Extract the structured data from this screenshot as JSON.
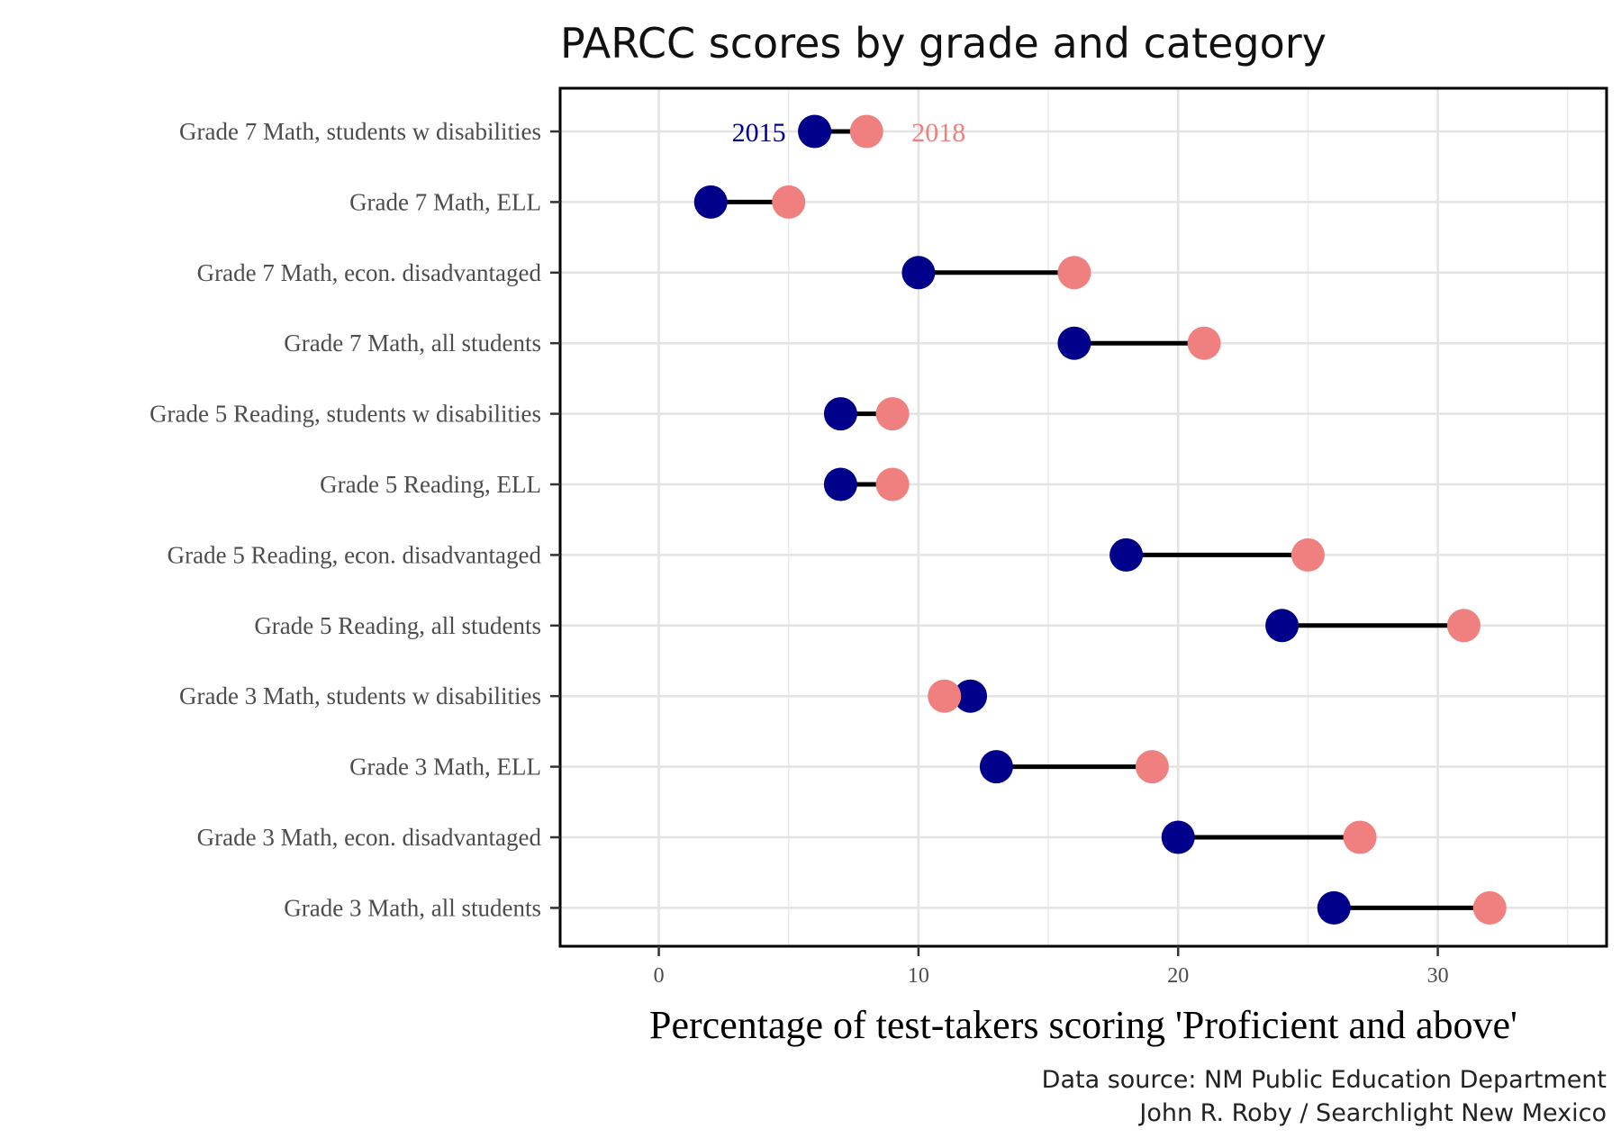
{
  "chart_data": {
    "type": "dumbbell",
    "title": "PARCC scores by grade and category",
    "xlabel": "Percentage of test-takers scoring 'Proficient and above'",
    "ylabel": "",
    "xlim": [
      -3.8,
      36.5
    ],
    "xticks": [
      0,
      10,
      20,
      30
    ],
    "x_minor_gridlines": [
      5,
      15,
      25,
      35
    ],
    "grid": true,
    "categories": [
      "Grade 7 Math, students w disabilities",
      "Grade 7 Math, ELL",
      "Grade 7 Math, econ. disadvantaged",
      "Grade 7 Math, all students",
      "Grade 5 Reading, students w disabilities",
      "Grade 5 Reading, ELL",
      "Grade 5 Reading, econ. disadvantaged",
      "Grade 5 Reading, all students",
      "Grade 3 Math, students w disabilities",
      "Grade 3 Math, ELL",
      "Grade 3 Math, econ. disadvantaged",
      "Grade 3 Math, all students"
    ],
    "series": [
      {
        "name": "2015",
        "color": "#00008B",
        "values": [
          6,
          2,
          10,
          16,
          7,
          7,
          18,
          24,
          12,
          13,
          20,
          26
        ]
      },
      {
        "name": "2018",
        "color": "#F08080",
        "values": [
          8,
          5,
          16,
          21,
          9,
          9,
          25,
          31,
          11,
          19,
          27,
          32
        ]
      }
    ],
    "legend": {
      "placement": "inline beside first row",
      "labels": [
        "2015",
        "2018"
      ]
    },
    "caption": [
      "Data source: NM Public Education Department",
      "John R. Roby / Searchlight New Mexico"
    ]
  }
}
